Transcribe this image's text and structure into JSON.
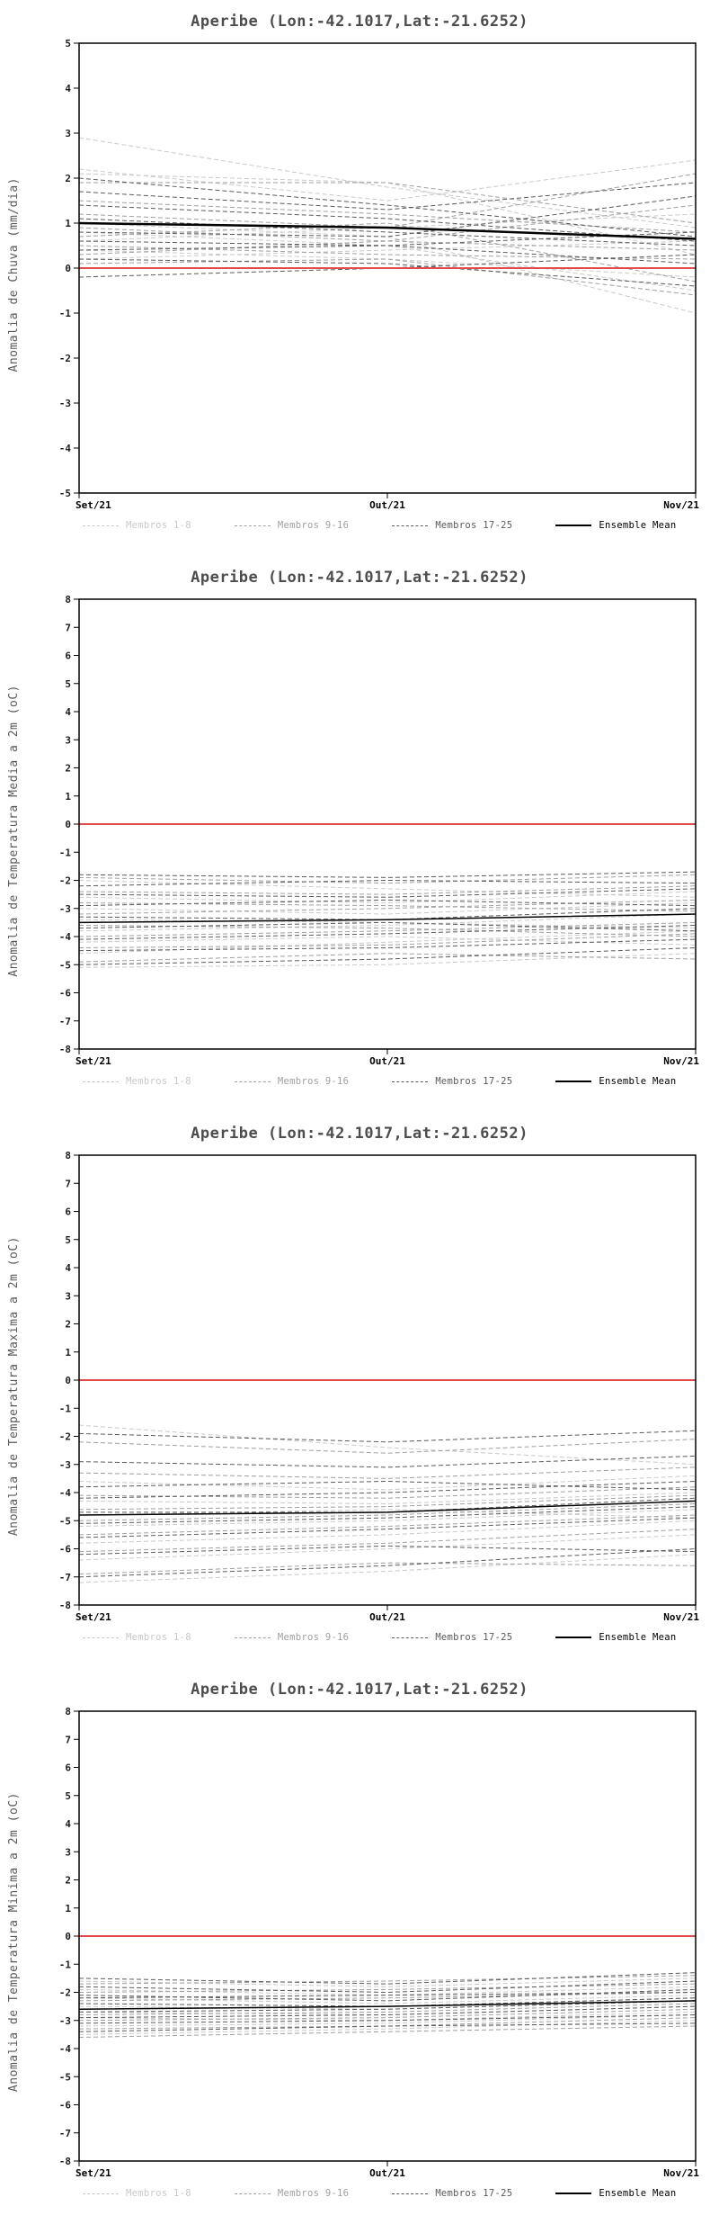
{
  "chart_data": [
    {
      "type": "line",
      "title": "Aperibe (Lon:-42.1017,Lat:-21.6252)",
      "ylabel": "Anomalia de Chuva (mm/dia)",
      "ylim": [
        -5,
        5
      ],
      "ytick_step": 1,
      "grid": false,
      "legend_position": "bottom",
      "x_categories": [
        "Set/21",
        "Out/21",
        "Nov/21"
      ],
      "zero_line": {
        "value": 0,
        "color": "#e14b4b"
      },
      "groups": [
        {
          "name": "Membros 1-8",
          "color": "#c9c9c9",
          "style": "dashed",
          "series": [
            [
              2.9,
              1.8,
              0.9
            ],
            [
              2.2,
              1.5,
              2.4
            ],
            [
              2.1,
              1.9,
              0.3
            ],
            [
              1.0,
              0.7,
              -1.0
            ],
            [
              0.8,
              0.5,
              -0.5
            ],
            [
              0.6,
              0.9,
              1.2
            ],
            [
              0.4,
              0.2,
              -0.2
            ],
            [
              0.2,
              0.4,
              0.6
            ]
          ]
        },
        {
          "name": "Membros 9-16",
          "color": "#9f9f9f",
          "style": "dashed",
          "series": [
            [
              1.9,
              1.9,
              1.0
            ],
            [
              1.5,
              1.2,
              0.8
            ],
            [
              1.2,
              0.9,
              2.1
            ],
            [
              0.9,
              0.6,
              0.4
            ],
            [
              0.7,
              1.0,
              -0.3
            ],
            [
              0.5,
              0.3,
              0.2
            ],
            [
              0.3,
              0.6,
              1.4
            ],
            [
              0.1,
              0.2,
              -0.6
            ]
          ]
        },
        {
          "name": "Membros 17-25",
          "color": "#5a5a5a",
          "style": "dashed",
          "series": [
            [
              2.0,
              1.4,
              0.7
            ],
            [
              1.7,
              1.3,
              1.9
            ],
            [
              1.4,
              1.1,
              0.6
            ],
            [
              1.1,
              0.8,
              0.5
            ],
            [
              0.8,
              0.7,
              1.6
            ],
            [
              0.6,
              0.5,
              0.1
            ],
            [
              0.4,
              0.5,
              0.8
            ],
            [
              0.2,
              0.1,
              -0.4
            ],
            [
              -0.2,
              0.0,
              0.3
            ]
          ]
        },
        {
          "name": "Ensemble Mean",
          "color": "#000000",
          "style": "solid",
          "width": 2.5,
          "series": [
            [
              1.0,
              0.9,
              0.65
            ]
          ]
        }
      ]
    },
    {
      "type": "line",
      "title": "Aperibe (Lon:-42.1017,Lat:-21.6252)",
      "ylabel": "Anomalia de Temperatura Media a 2m (oC)",
      "ylim": [
        -8,
        8
      ],
      "ytick_step": 1,
      "grid": false,
      "legend_position": "bottom",
      "x_categories": [
        "Set/21",
        "Out/21",
        "Nov/21"
      ],
      "zero_line": {
        "value": 0,
        "color": "#e14b4b"
      },
      "groups": [
        {
          "name": "Membros 1-8",
          "color": "#c9c9c9",
          "style": "dashed",
          "series": [
            [
              -5.1,
              -5.0,
              -4.6
            ],
            [
              -4.6,
              -4.2,
              -3.8
            ],
            [
              -4.2,
              -4.0,
              -4.3
            ],
            [
              -3.8,
              -3.6,
              -3.2
            ],
            [
              -3.4,
              -3.5,
              -3.7
            ],
            [
              -3.0,
              -3.2,
              -2.8
            ],
            [
              -2.6,
              -2.8,
              -2.4
            ],
            [
              -2.0,
              -2.3,
              -2.6
            ]
          ]
        },
        {
          "name": "Membros 9-16",
          "color": "#9f9f9f",
          "style": "dashed",
          "series": [
            [
              -4.9,
              -4.6,
              -4.8
            ],
            [
              -4.4,
              -4.3,
              -3.9
            ],
            [
              -4.0,
              -3.8,
              -3.5
            ],
            [
              -3.6,
              -3.7,
              -4.0
            ],
            [
              -3.2,
              -3.0,
              -2.7
            ],
            [
              -2.8,
              -2.9,
              -3.1
            ],
            [
              -2.4,
              -2.5,
              -2.2
            ],
            [
              -1.9,
              -2.1,
              -1.8
            ]
          ]
        },
        {
          "name": "Membros 17-25",
          "color": "#5a5a5a",
          "style": "dashed",
          "series": [
            [
              -5.0,
              -4.8,
              -4.4
            ],
            [
              -4.5,
              -4.4,
              -4.1
            ],
            [
              -4.1,
              -3.9,
              -3.6
            ],
            [
              -3.7,
              -3.5,
              -3.8
            ],
            [
              -3.3,
              -3.4,
              -3.0
            ],
            [
              -2.9,
              -2.7,
              -2.9
            ],
            [
              -2.5,
              -2.6,
              -2.3
            ],
            [
              -2.2,
              -2.0,
              -2.1
            ],
            [
              -1.8,
              -1.9,
              -1.7
            ]
          ]
        },
        {
          "name": "Ensemble Mean",
          "color": "#000000",
          "style": "solid",
          "width": 1.5,
          "series": [
            [
              -3.5,
              -3.4,
              -3.2
            ]
          ]
        }
      ]
    },
    {
      "type": "line",
      "title": "Aperibe (Lon:-42.1017,Lat:-21.6252)",
      "ylabel": "Anomalia de Temperatura Maxima a 2m (oC)",
      "ylim": [
        -8,
        8
      ],
      "ytick_step": 1,
      "grid": false,
      "legend_position": "bottom",
      "x_categories": [
        "Set/21",
        "Out/21",
        "Nov/21"
      ],
      "zero_line": {
        "value": 0,
        "color": "#e14b4b"
      },
      "groups": [
        {
          "name": "Membros 1-8",
          "color": "#c9c9c9",
          "style": "dashed",
          "series": [
            [
              -7.2,
              -6.8,
              -6.2
            ],
            [
              -6.4,
              -6.0,
              -5.5
            ],
            [
              -5.8,
              -5.5,
              -5.0
            ],
            [
              -5.2,
              -5.0,
              -4.6
            ],
            [
              -4.8,
              -4.6,
              -4.9
            ],
            [
              -4.3,
              -4.4,
              -4.0
            ],
            [
              -3.6,
              -3.9,
              -3.4
            ],
            [
              -1.6,
              -2.4,
              -3.0
            ]
          ]
        },
        {
          "name": "Membros 9-16",
          "color": "#9f9f9f",
          "style": "dashed",
          "series": [
            [
              -6.9,
              -6.5,
              -6.6
            ],
            [
              -6.1,
              -5.8,
              -5.3
            ],
            [
              -5.5,
              -5.2,
              -4.8
            ],
            [
              -5.0,
              -4.8,
              -4.4
            ],
            [
              -4.6,
              -4.5,
              -4.1
            ],
            [
              -4.1,
              -4.2,
              -3.8
            ],
            [
              -3.3,
              -3.5,
              -3.1
            ],
            [
              -2.2,
              -2.6,
              -2.1
            ]
          ]
        },
        {
          "name": "Membros 17-25",
          "color": "#5a5a5a",
          "style": "dashed",
          "series": [
            [
              -7.0,
              -6.6,
              -6.0
            ],
            [
              -6.2,
              -5.9,
              -6.1
            ],
            [
              -5.6,
              -5.3,
              -4.9
            ],
            [
              -5.1,
              -4.9,
              -4.5
            ],
            [
              -4.7,
              -4.7,
              -4.2
            ],
            [
              -4.2,
              -4.0,
              -3.6
            ],
            [
              -3.8,
              -3.6,
              -3.9
            ],
            [
              -2.9,
              -3.1,
              -2.7
            ],
            [
              -1.9,
              -2.2,
              -1.8
            ]
          ]
        },
        {
          "name": "Ensemble Mean",
          "color": "#000000",
          "style": "solid",
          "width": 1.5,
          "series": [
            [
              -4.8,
              -4.7,
              -4.3
            ]
          ]
        }
      ]
    },
    {
      "type": "line",
      "title": "Aperibe (Lon:-42.1017,Lat:-21.6252)",
      "ylabel": "Anomalia de Temperatura Minima a 2m (oC)",
      "ylim": [
        -8,
        8
      ],
      "ytick_step": 1,
      "grid": false,
      "legend_position": "bottom",
      "x_categories": [
        "Set/21",
        "Out/21",
        "Nov/21"
      ],
      "zero_line": {
        "value": 0,
        "color": "#e14b4b"
      },
      "groups": [
        {
          "name": "Membros 1-8",
          "color": "#c9c9c9",
          "style": "dashed",
          "series": [
            [
              -3.5,
              -3.3,
              -3.0
            ],
            [
              -3.2,
              -3.1,
              -2.8
            ],
            [
              -2.9,
              -3.0,
              -2.7
            ],
            [
              -2.7,
              -2.8,
              -2.5
            ],
            [
              -2.5,
              -2.6,
              -2.3
            ],
            [
              -2.2,
              -2.4,
              -2.1
            ],
            [
              -1.9,
              -2.1,
              -1.8
            ],
            [
              -1.6,
              -1.8,
              -1.5
            ]
          ]
        },
        {
          "name": "Membros 9-16",
          "color": "#9f9f9f",
          "style": "dashed",
          "series": [
            [
              -3.6,
              -3.4,
              -3.2
            ],
            [
              -3.3,
              -3.2,
              -2.9
            ],
            [
              -3.0,
              -2.9,
              -2.6
            ],
            [
              -2.8,
              -2.7,
              -2.4
            ],
            [
              -2.6,
              -2.5,
              -2.2
            ],
            [
              -2.3,
              -2.2,
              -2.0
            ],
            [
              -2.0,
              -1.9,
              -1.7
            ],
            [
              -1.7,
              -1.6,
              -1.4
            ]
          ]
        },
        {
          "name": "Membros 17-25",
          "color": "#5a5a5a",
          "style": "dashed",
          "series": [
            [
              -3.4,
              -3.2,
              -3.1
            ],
            [
              -3.1,
              -3.0,
              -2.8
            ],
            [
              -2.9,
              -2.8,
              -2.5
            ],
            [
              -2.7,
              -2.6,
              -2.3
            ],
            [
              -2.4,
              -2.5,
              -2.2
            ],
            [
              -2.1,
              -2.3,
              -1.9
            ],
            [
              -1.8,
              -2.0,
              -1.6
            ],
            [
              -1.5,
              -1.7,
              -1.3
            ],
            [
              -2.2,
              -2.1,
              -2.0
            ]
          ]
        },
        {
          "name": "Ensemble Mean",
          "color": "#000000",
          "style": "solid",
          "width": 1.5,
          "series": [
            [
              -2.6,
              -2.5,
              -2.3
            ]
          ]
        }
      ]
    }
  ]
}
